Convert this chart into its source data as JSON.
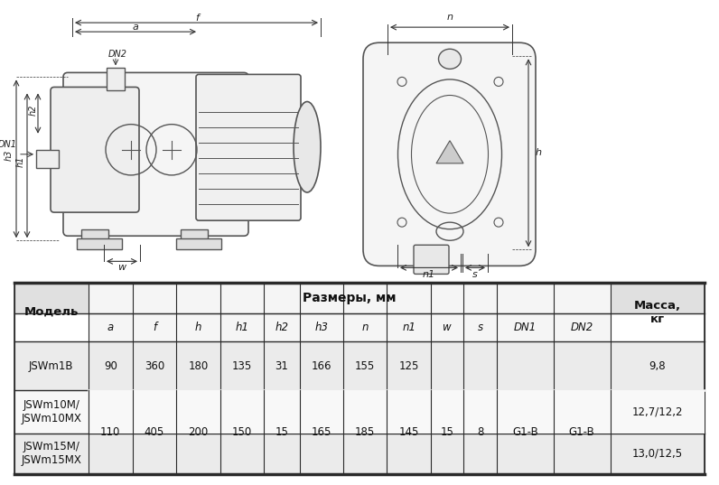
{
  "bg_color": "#ffffff",
  "table_border_color": "#2a2a2a",
  "col_header": "Модель",
  "col_sizes": "Размеры, мм",
  "col_mass": "Масса,\nкг",
  "sub_cols": [
    "a",
    "f",
    "h",
    "h1",
    "h2",
    "h3",
    "n",
    "n1",
    "w",
    "s",
    "DN1",
    "DN2"
  ],
  "rows": [
    {
      "model": "JSWm1B",
      "a": "90",
      "f": "360",
      "h": "180",
      "h1": "135",
      "h2": "31",
      "h3": "166",
      "n": "155",
      "n1": "125",
      "w": "",
      "s": "",
      "DN1": "",
      "DN2": "",
      "mass": "9,8"
    },
    {
      "model": "JSWm10M/\nJSWm10MX",
      "a": "",
      "f": "",
      "h": "",
      "h1": "",
      "h2": "",
      "h3": "",
      "n": "",
      "n1": "",
      "w": "15",
      "s": "8",
      "DN1": "G1-B",
      "DN2": "G1-B",
      "mass": "12,7/12,2"
    },
    {
      "model": "JSWm15M/\nJSWm15MX",
      "a": "110",
      "f": "405",
      "h": "200",
      "h1": "150",
      "h2": "15",
      "h3": "165",
      "n": "185",
      "n1": "145",
      "w": "",
      "s": "",
      "DN1": "",
      "DN2": "",
      "mass": "13,0/12,5"
    }
  ],
  "line_color": "#555555"
}
